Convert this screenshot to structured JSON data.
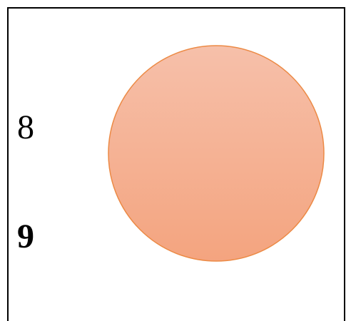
{
  "labels": [
    "8",
    "9"
  ]
}
